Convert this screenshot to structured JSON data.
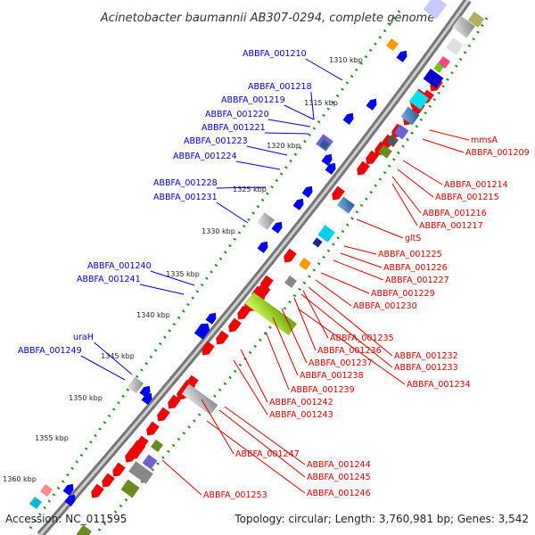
{
  "title": "Acinetobacter baumannii AB307-0294, complete genome",
  "footer": {
    "accession": "Accession: NC_011595",
    "summary": "Topology: circular; Length: 3,760,981 bp; Genes: 3,542"
  },
  "ticks": [
    "1310 kbp",
    "1315 kbp",
    "1320 kbp",
    "1325 kbp",
    "1330 kbp",
    "1335 kbp",
    "1340 kbp",
    "1345 kbp",
    "1350 kbp",
    "1355 kbp",
    "1360 kbp"
  ],
  "left_labels": [
    "ABBFA_001210",
    "ABBFA_001218",
    "ABBFA_001219",
    "ABBFA_001220",
    "ABBFA_001221",
    "ABBFA_001223",
    "ABBFA_001224",
    "ABBFA_001228",
    "ABBFA_001231",
    "ABBFA_001240",
    "ABBFA_001241",
    "uraH",
    "ABBFA_001249"
  ],
  "right_labels": [
    "mmsA",
    "ABBFA_001209",
    "ABBFA_001214",
    "ABBFA_001215",
    "ABBFA_001216",
    "ABBFA_001217",
    "gltS",
    "ABBFA_001225",
    "ABBFA_001226",
    "ABBFA_001227",
    "ABBFA_001229",
    "ABBFA_001230",
    "ABBFA_001235",
    "ABBFA_001236",
    "ABBFA_001232",
    "ABBFA_001237",
    "ABBFA_001233",
    "ABBFA_001238",
    "ABBFA_001234",
    "ABBFA_001239",
    "ABBFA_001242",
    "ABBFA_001243",
    "ABBFA_001247",
    "ABBFA_001244",
    "ABBFA_001245",
    "ABBFA_001246",
    "ABBFA_001253"
  ],
  "colors": {
    "backbone": "#888888",
    "forward_gene": "#ee0000",
    "reverse_gene": "#0000ee",
    "left_label": "#0000c8",
    "right_label": "#d40000",
    "ticks": "#2a8a2a"
  }
}
